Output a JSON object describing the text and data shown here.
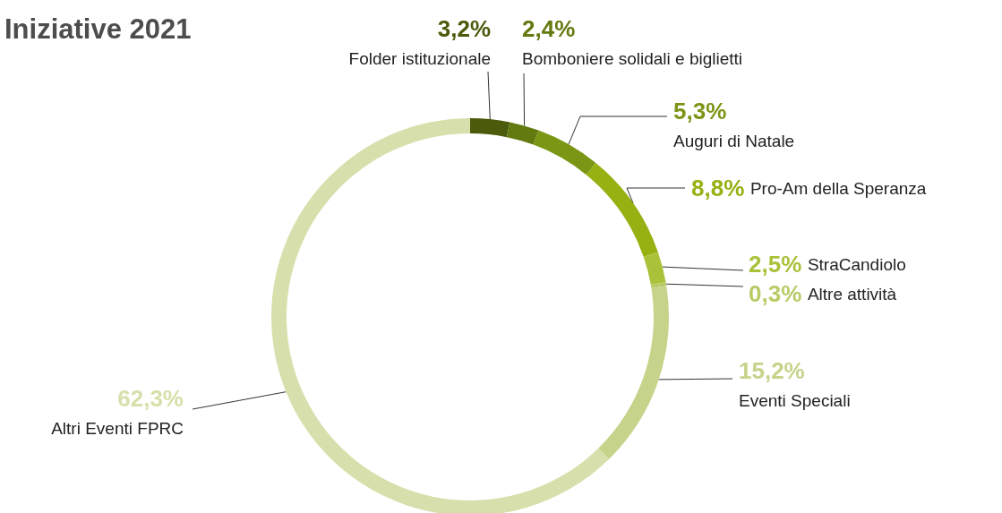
{
  "chart_data": {
    "type": "donut",
    "title": "Iniziative 2021",
    "categories": [
      "Folder istituzionale",
      "Bomboniere solidali e biglietti",
      "Auguri di Natale",
      "Pro-Am della Speranza",
      "StraCandiolo",
      "Altre attività",
      "Eventi Speciali",
      "Altri Eventi FPRC"
    ],
    "values": [
      3.2,
      2.4,
      5.3,
      8.8,
      2.5,
      0.3,
      15.2,
      62.3
    ],
    "value_labels": [
      "3,2%",
      "2,4%",
      "5,3%",
      "8,8%",
      "2,5%",
      "0,3%",
      "15,2%",
      "62,3%"
    ],
    "colors": [
      "#4a5b0c",
      "#627a10",
      "#7b9614",
      "#97b012",
      "#a9c23a",
      "#b7cb66",
      "#c5d48a",
      "#d7e0ac"
    ],
    "legend": false
  }
}
